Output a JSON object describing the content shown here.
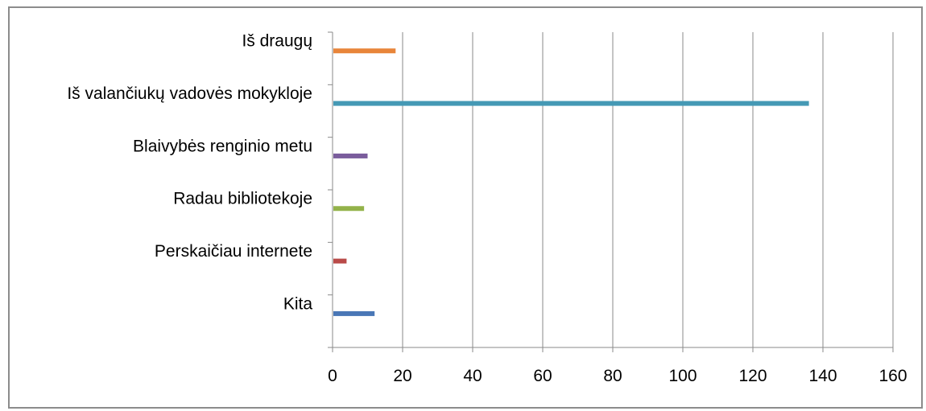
{
  "chart_data": {
    "type": "bar",
    "orientation": "horizontal",
    "categories": [
      "Iš draugų",
      "Iš valančiukų vadovės mokykloje",
      "Blaivybės renginio metu",
      "Radau bibliotekoje",
      "Perskaičiau internete",
      "Kita"
    ],
    "series": [
      {
        "values": [
          18,
          136,
          10,
          9,
          4,
          12
        ]
      }
    ],
    "bar_colors": [
      "#E8853A",
      "#4599B5",
      "#7A5D9C",
      "#93B24A",
      "#B94A48",
      "#4A77B6"
    ],
    "xlim": [
      0,
      160
    ],
    "x_ticks": [
      "0",
      "20",
      "40",
      "60",
      "80",
      "100",
      "120",
      "140",
      "160"
    ],
    "grid": true,
    "legend": "none",
    "title": "",
    "xlabel": "",
    "ylabel": ""
  }
}
